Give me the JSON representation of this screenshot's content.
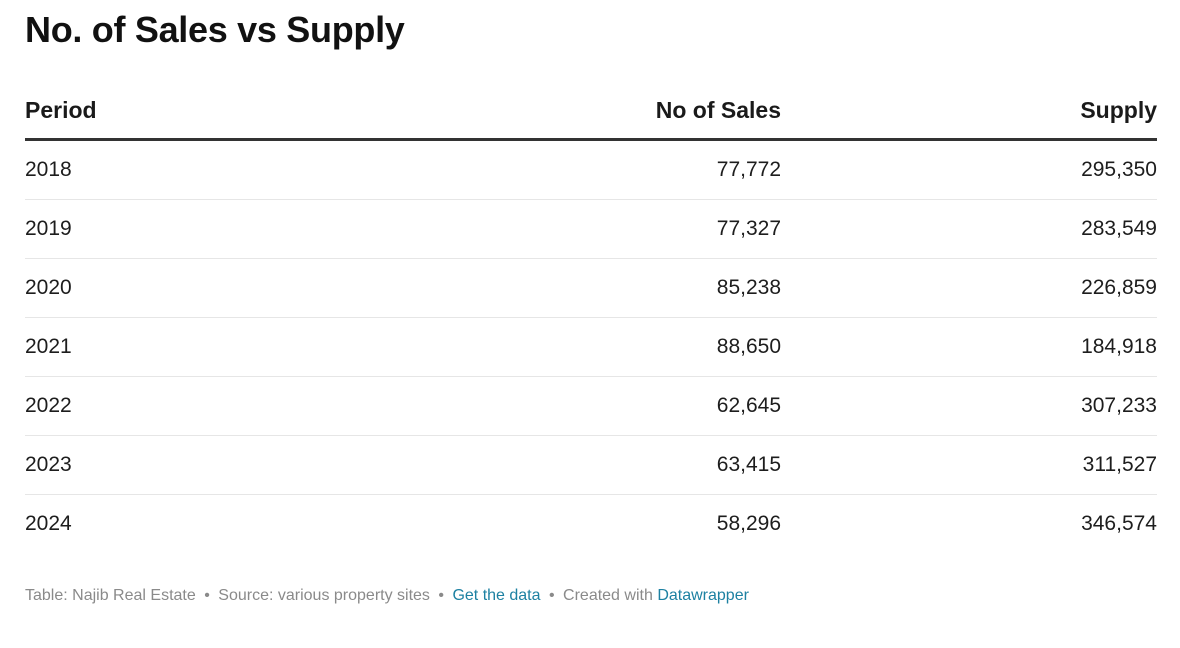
{
  "title": "No. of Sales vs Supply",
  "chart_data": {
    "type": "table",
    "title": "No. of Sales vs Supply",
    "columns": [
      "Period",
      "No of Sales",
      "Supply"
    ],
    "rows": [
      [
        "2018",
        "77,772",
        "295,350"
      ],
      [
        "2019",
        "77,327",
        "283,549"
      ],
      [
        "2020",
        "85,238",
        "226,859"
      ],
      [
        "2021",
        "88,650",
        "184,918"
      ],
      [
        "2022",
        "62,645",
        "307,233"
      ],
      [
        "2023",
        "63,415",
        "311,527"
      ],
      [
        "2024",
        "58,296",
        "346,574"
      ]
    ]
  },
  "footer": {
    "table_text": "Table: Najib Real Estate",
    "source_text": "Source: various property sites",
    "get_data_label": "Get the data",
    "created_with_text": "Created with",
    "datawrapper_label": "Datawrapper",
    "separator": "•"
  },
  "colors": {
    "link": "#1d81a2",
    "footer_text": "#8a8a8a",
    "header_rule": "#333333",
    "row_rule": "#e6e6e6"
  }
}
